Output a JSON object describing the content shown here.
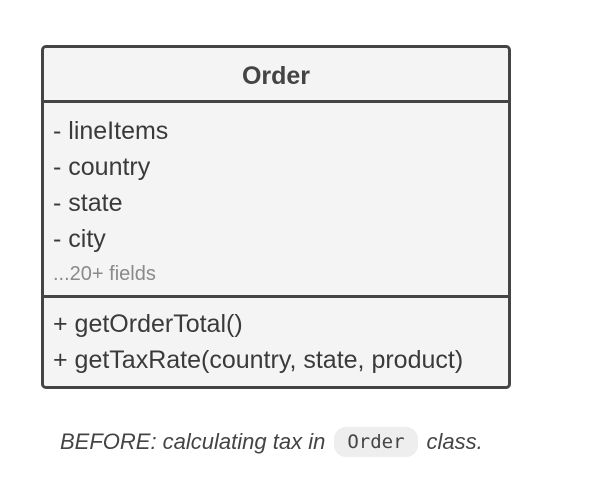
{
  "uml_class": {
    "name": "Order",
    "fields": [
      "- lineItems",
      "- country",
      "- state",
      "- city"
    ],
    "more_fields": "...20+ fields",
    "methods": [
      "+ getOrderTotal()",
      "+ getTaxRate(country, state, product)"
    ]
  },
  "caption": {
    "before_text": "BEFORE: calculating tax in",
    "code": "Order",
    "after_text": "class."
  }
}
